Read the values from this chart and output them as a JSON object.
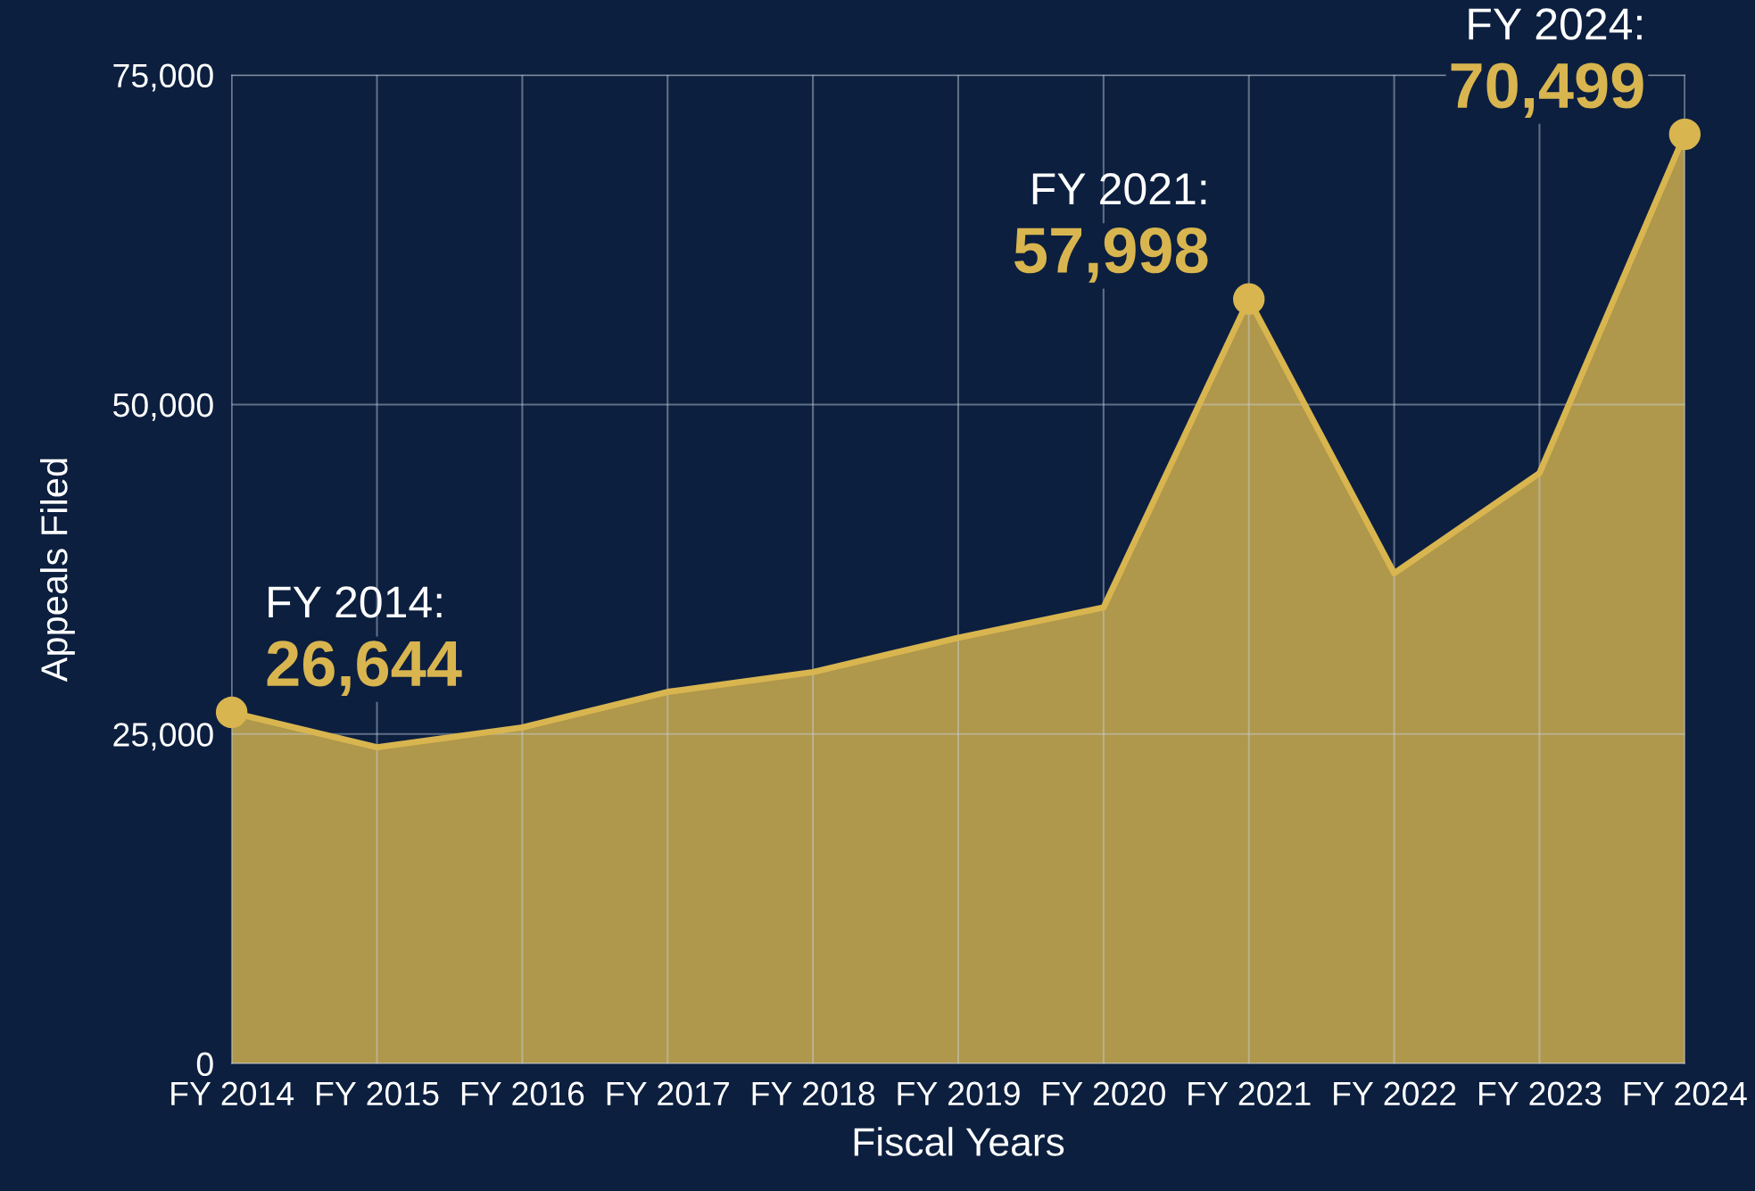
{
  "chart_data": {
    "type": "area",
    "xlabel": "Fiscal Years",
    "ylabel": "Appeals Filed",
    "categories": [
      "FY 2014",
      "FY 2015",
      "FY 2016",
      "FY 2017",
      "FY 2018",
      "FY 2019",
      "FY 2020",
      "FY 2021",
      "FY 2022",
      "FY 2023",
      "FY 2024"
    ],
    "series": [
      {
        "color": "#d8b54f",
        "values": [
          26644,
          24000,
          25500,
          28200,
          29700,
          32300,
          34600,
          57998,
          37200,
          44800,
          70499
        ]
      },
      {
        "type": "scatter",
        "color": "#d8b54f",
        "marker": "circle",
        "x": [
          "FY 2014",
          "FY 2021",
          "FY 2024"
        ],
        "values": [
          26644,
          57998,
          70499
        ],
        "value_labels": [
          "26,644",
          "57,998",
          "70,499"
        ]
      }
    ],
    "annotations": [
      {
        "text": "FY 2014:",
        "x": "FY 2014",
        "y": 26644
      },
      {
        "text": "FY 2021:",
        "x": "FY 2021",
        "y": 57998
      },
      {
        "text": "FY 2024:",
        "x": "FY 2024",
        "y": 70499
      }
    ],
    "ylim": [
      0,
      75000
    ],
    "yticks": [
      {
        "value": 0,
        "label": "0"
      },
      {
        "value": 25000,
        "label": "25,000"
      },
      {
        "value": 50000,
        "label": "50,000"
      },
      {
        "value": 75000,
        "label": "75,000"
      }
    ],
    "grid": true
  }
}
